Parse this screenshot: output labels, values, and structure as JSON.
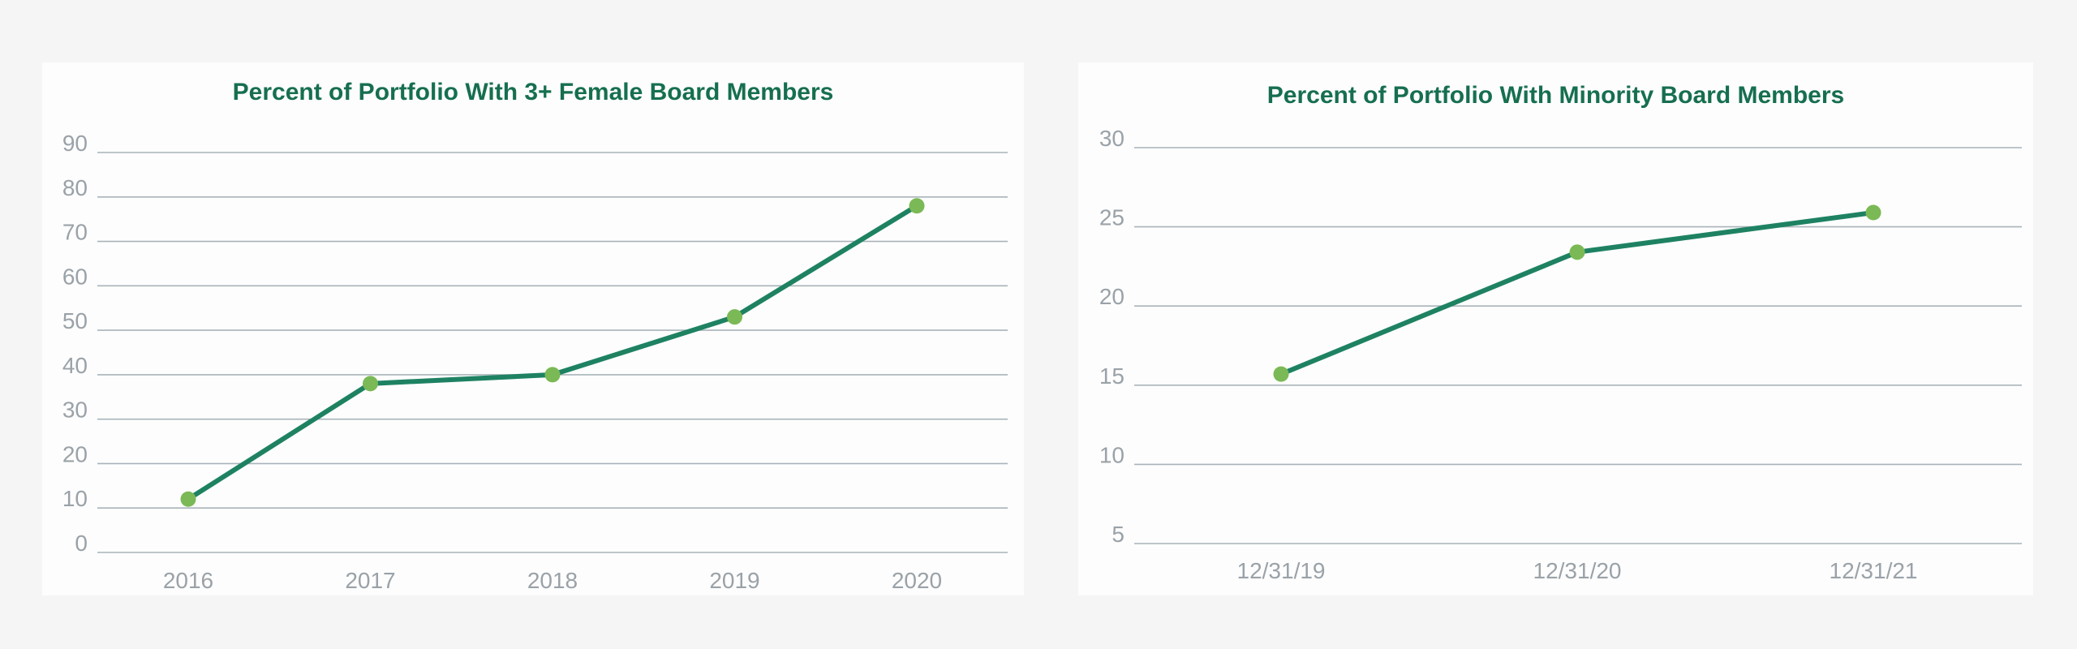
{
  "colors": {
    "line": "#1e8262",
    "marker": "#7ab955",
    "title": "#166f4f",
    "grid": "#a8b4ba",
    "tick": "#9aa2a8"
  },
  "chart_data": [
    {
      "type": "line",
      "title": "Percent of Portfolio With 3+ Female Board Members",
      "xlabel": "",
      "ylabel": "",
      "categories": [
        "2016",
        "2017",
        "2018",
        "2019",
        "2020"
      ],
      "values": [
        12,
        38,
        40,
        53,
        78
      ],
      "yticks": [
        0,
        10,
        20,
        30,
        40,
        50,
        60,
        70,
        80,
        90
      ],
      "ylim": [
        0,
        90
      ],
      "grid": true,
      "legend": "none"
    },
    {
      "type": "line",
      "title": "Percent of Portfolio With Minority Board Members",
      "xlabel": "",
      "ylabel": "",
      "categories": [
        "12/31/19",
        "12/31/20",
        "12/31/21"
      ],
      "values": [
        15.7,
        23.4,
        25.9
      ],
      "yticks": [
        5,
        10,
        15,
        20,
        25,
        30
      ],
      "ylim": [
        5,
        30
      ],
      "grid": true,
      "legend": "none"
    }
  ]
}
